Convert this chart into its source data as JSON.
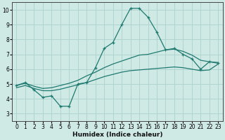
{
  "xlabel": "Humidex (Indice chaleur)",
  "ylabel": "",
  "xlim": [
    -0.5,
    23.5
  ],
  "ylim": [
    2.5,
    10.5
  ],
  "xticks": [
    0,
    1,
    2,
    3,
    4,
    5,
    6,
    7,
    8,
    9,
    10,
    11,
    12,
    13,
    14,
    15,
    16,
    17,
    18,
    19,
    20,
    21,
    22,
    23
  ],
  "yticks": [
    3,
    4,
    5,
    6,
    7,
    8,
    9,
    10
  ],
  "background_color": "#cfe9e5",
  "grid_color": "#b0d4cf",
  "line_color": "#1e7a70",
  "line1_x": [
    0,
    1,
    2,
    3,
    4,
    5,
    6,
    7,
    8,
    9,
    10,
    11,
    12,
    13,
    14,
    15,
    16,
    17,
    18,
    19,
    20,
    21,
    22,
    23
  ],
  "line1_y": [
    4.9,
    5.1,
    4.6,
    4.1,
    4.2,
    3.5,
    3.5,
    5.0,
    5.1,
    6.1,
    7.4,
    7.8,
    9.0,
    10.1,
    10.1,
    9.5,
    8.5,
    7.3,
    7.4,
    7.0,
    6.7,
    6.0,
    6.5,
    6.4
  ],
  "line2_x": [
    0,
    1,
    2,
    3,
    4,
    5,
    6,
    7,
    8,
    9,
    10,
    11,
    12,
    13,
    14,
    15,
    16,
    17,
    18,
    19,
    20,
    21,
    22,
    23
  ],
  "line2_y": [
    4.9,
    5.05,
    4.85,
    4.7,
    4.75,
    4.9,
    5.05,
    5.25,
    5.55,
    5.8,
    6.1,
    6.35,
    6.55,
    6.75,
    6.95,
    7.0,
    7.15,
    7.3,
    7.35,
    7.2,
    6.95,
    6.6,
    6.5,
    6.45
  ],
  "line3_x": [
    0,
    1,
    2,
    3,
    4,
    5,
    6,
    7,
    8,
    9,
    10,
    11,
    12,
    13,
    14,
    15,
    16,
    17,
    18,
    19,
    20,
    21,
    22,
    23
  ],
  "line3_y": [
    4.75,
    4.9,
    4.7,
    4.55,
    4.55,
    4.65,
    4.8,
    4.95,
    5.1,
    5.3,
    5.5,
    5.65,
    5.8,
    5.9,
    5.95,
    6.0,
    6.05,
    6.1,
    6.15,
    6.1,
    6.0,
    5.9,
    5.95,
    6.35
  ]
}
